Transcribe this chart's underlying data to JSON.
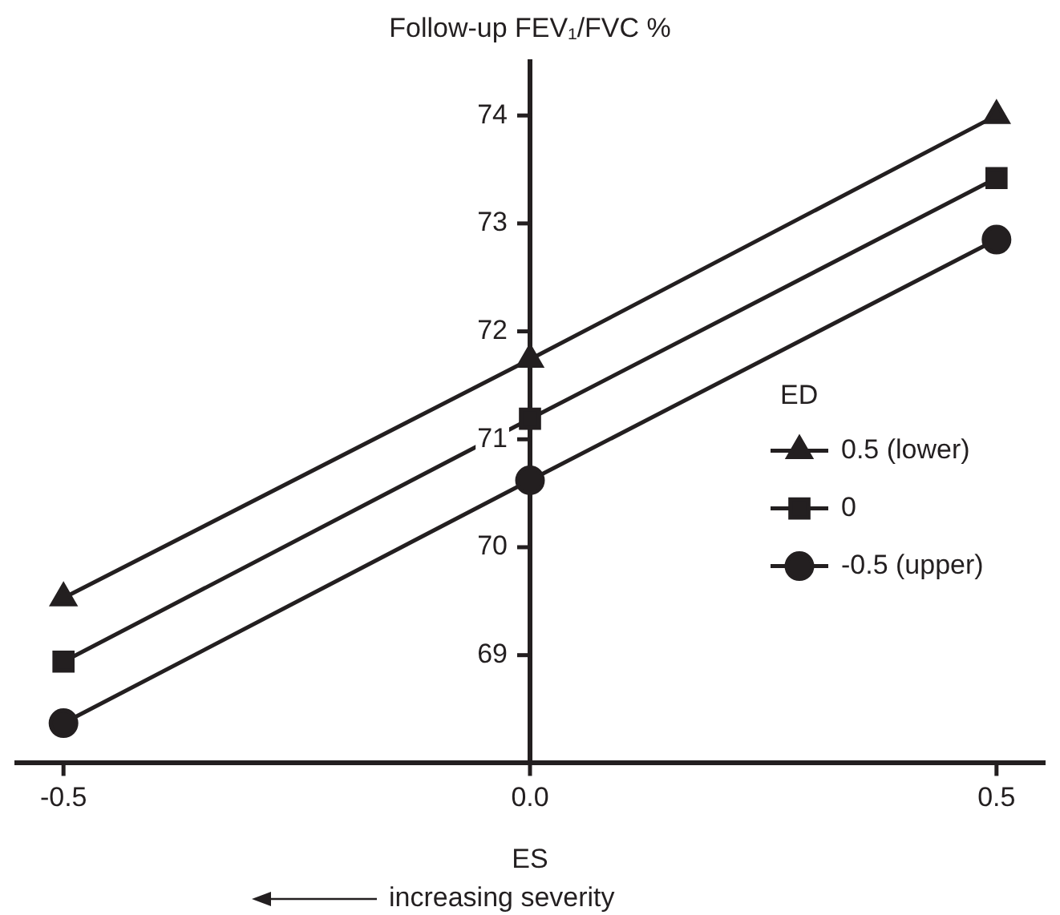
{
  "chart_data": {
    "type": "line",
    "title": "Follow-up FEV₁/FVC %",
    "xlabel": "ES",
    "legend_title": "ED",
    "annotations": [
      "increasing severity"
    ],
    "x": [
      -0.5,
      0.0,
      0.5
    ],
    "xlim": [
      -0.55,
      0.55
    ],
    "xticks": [
      {
        "value": -0.5,
        "label": "-0.5"
      },
      {
        "value": 0,
        "label": "0.0"
      },
      {
        "value": 0.5,
        "label": "0.5"
      }
    ],
    "ylim": [
      68,
      74.5
    ],
    "yticks": [
      69,
      70,
      71,
      72,
      73,
      74
    ],
    "grid": false,
    "legend": "right",
    "line_style": "solid",
    "series": [
      {
        "name": "0.5 (lower)",
        "color": "#231f20",
        "marker": "triangle",
        "values": [
          69.53,
          71.74,
          74.0
        ]
      },
      {
        "name": "0",
        "color": "#231f20",
        "marker": "square",
        "values": [
          68.94,
          71.19,
          73.42
        ]
      },
      {
        "name": "-0.5 (upper)",
        "color": "#231f20",
        "marker": "circle",
        "values": [
          68.37,
          70.62,
          72.85
        ]
      }
    ]
  }
}
